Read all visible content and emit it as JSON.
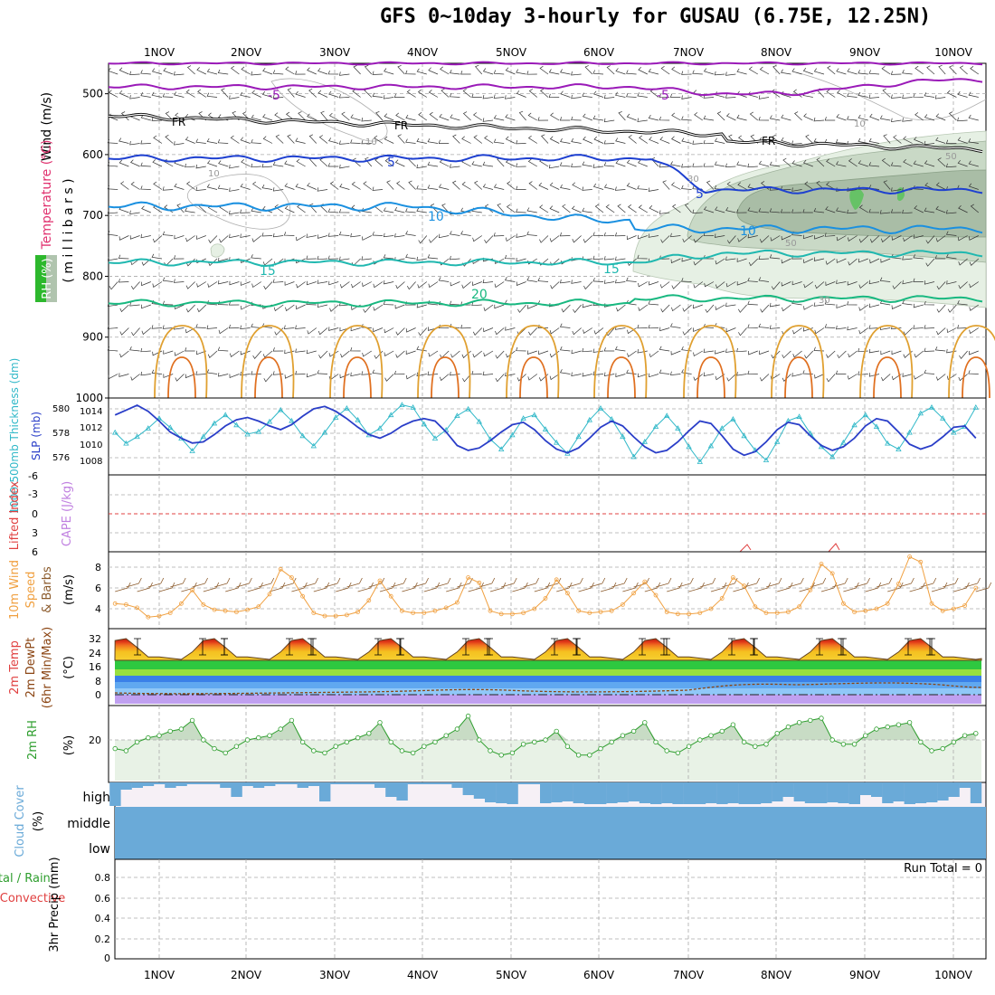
{
  "title": "GFS 0~10day 3-hourly for GUSAU (6.75E, 12.25N)",
  "days": [
    "1NOV",
    "2NOV",
    "3NOV",
    "4NOV",
    "5NOV",
    "6NOV",
    "7NOV",
    "8NOV",
    "9NOV",
    "10NOV"
  ],
  "panels": {
    "upper": {
      "ylabel_parts": [
        {
          "text": "Wind (m/s)",
          "color": "#000000"
        },
        {
          "text": "Temperature (°C)",
          "color": "#e0306e"
        },
        {
          "text": "RH (%)",
          "color": "#ffffff"
        }
      ],
      "ylabel_millibars": "( m i l l i b a r s )",
      "pressure_ticks": [
        "500",
        "600",
        "700",
        "800",
        "900",
        "1000"
      ],
      "temp_labels": [
        "-5",
        "-5",
        "FR",
        "FR",
        "FR",
        "5",
        "5",
        "10",
        "10",
        "15",
        "15",
        "20"
      ],
      "rh_labels": [
        "10",
        "10",
        "10",
        "30",
        "50",
        "50",
        "30"
      ]
    },
    "slp": {
      "left_label": "1000-500mb Thickness (dm)",
      "right_label": "SLP (mb)",
      "thickness_ticks": [
        "580",
        "578",
        "576"
      ],
      "slp_ticks": [
        "1014",
        "1012",
        "1010",
        "1008"
      ]
    },
    "cape": {
      "left_label": "Lifted Index",
      "right_label": "CAPE (J/kg)",
      "ticks": [
        "-6",
        "-3",
        "0",
        "3",
        "6"
      ]
    },
    "wind10": {
      "label_lines": [
        "10m Wind",
        "Speed",
        "& Barbs"
      ],
      "unit": "(m/s)",
      "ticks": [
        "8",
        "6",
        "4"
      ]
    },
    "temp2m": {
      "label_lines": [
        "2m Temp",
        "2m DewPt",
        "(6hr Min/Max)"
      ],
      "unit": "(°C)",
      "ticks": [
        "32",
        "24",
        "16",
        "8",
        "0"
      ]
    },
    "rh2m": {
      "label": "2m RH",
      "unit": "(%)",
      "ticks": [
        "20"
      ]
    },
    "cloud": {
      "label": "Cloud Cover",
      "unit": "(%)",
      "levels": [
        "high",
        "middle",
        "low"
      ]
    },
    "precip": {
      "label_total": "Total / Rain",
      "label_conv": "Convective",
      "label_main": "3hr Precip (mm)",
      "ticks": [
        "0.8",
        "0.6",
        "0.4",
        "0.2",
        "0"
      ],
      "run_total": "Run Total = 0"
    }
  },
  "colors": {
    "temp_neg": "#9a1ab8",
    "temp_fr": "#000000",
    "temp_5": "#1e40d0",
    "temp_10": "#1a90e0",
    "temp_15": "#20b8b0",
    "temp_20": "#18b880",
    "warm": "#e0a030",
    "hot": "#e07020",
    "thickness": "#2a3ec8",
    "slp": "#30b8c8",
    "wind_speed": "#f0a040",
    "barb": "#8b5a2b",
    "rh": "#2e9e2e",
    "cloud": "#6aaad8",
    "tempfill_top": "#c03010",
    "dewpoint": "#8b4513"
  },
  "chart_data": [
    {
      "type": "line",
      "title": "1000-500mb Thickness (dm)",
      "x": [
        "31OCT12",
        "31OCT15",
        "31OCT18",
        "31OCT21",
        "1NOV00",
        "1NOV03",
        "1NOV06",
        "1NOV09",
        "1NOV12",
        "1NOV15",
        "1NOV18",
        "1NOV21",
        "2NOV00",
        "2NOV03",
        "2NOV06",
        "2NOV09",
        "2NOV12",
        "2NOV15",
        "2NOV18",
        "2NOV21",
        "3NOV00",
        "3NOV03",
        "3NOV06",
        "3NOV09",
        "3NOV12",
        "3NOV15",
        "3NOV18",
        "3NOV21",
        "4NOV00",
        "4NOV03",
        "4NOV06",
        "4NOV09",
        "4NOV12",
        "4NOV15",
        "4NOV18",
        "4NOV21",
        "5NOV00",
        "5NOV03",
        "5NOV06",
        "5NOV09",
        "5NOV12",
        "5NOV15",
        "5NOV18",
        "5NOV21",
        "6NOV00",
        "6NOV03",
        "6NOV06",
        "6NOV09",
        "6NOV12",
        "6NOV15",
        "6NOV18",
        "6NOV21",
        "7NOV00",
        "7NOV03",
        "7NOV06",
        "7NOV09",
        "7NOV12",
        "7NOV15",
        "7NOV18",
        "7NOV21",
        "8NOV00",
        "8NOV03",
        "8NOV06",
        "8NOV09",
        "8NOV12",
        "8NOV15",
        "8NOV18",
        "8NOV21",
        "9NOV00",
        "9NOV03",
        "9NOV06",
        "9NOV09",
        "9NOV12",
        "9NOV15",
        "9NOV18",
        "9NOV21",
        "10NOV00",
        "10NOV03",
        "10NOV06"
      ],
      "series": [
        {
          "name": "1000-500mb Thickness",
          "unit": "dm",
          "values": [
            579.5,
            579.9,
            580.3,
            579.8,
            579.0,
            578.1,
            577.6,
            577.2,
            577.3,
            577.9,
            578.6,
            579.1,
            579.3,
            579.0,
            578.6,
            578.3,
            578.7,
            579.4,
            580.0,
            580.2,
            579.8,
            579.2,
            578.5,
            577.9,
            577.6,
            578.0,
            578.6,
            579.0,
            579.2,
            579.0,
            578.1,
            577.0,
            576.6,
            576.8,
            577.4,
            578.1,
            578.7,
            578.9,
            578.3,
            577.4,
            576.7,
            576.4,
            576.8,
            577.6,
            578.5,
            579.0,
            578.6,
            577.7,
            576.9,
            576.4,
            576.6,
            577.3,
            578.2,
            579.0,
            578.8,
            577.8,
            576.7,
            576.2,
            576.5,
            577.3,
            578.3,
            578.9,
            578.7,
            577.8,
            577.0,
            576.6,
            576.9,
            577.6,
            578.6,
            579.2,
            579.0,
            578.1,
            577.1,
            576.7,
            577.0,
            577.7,
            578.5,
            578.6,
            577.6
          ]
        },
        {
          "name": "SLP",
          "unit": "mb",
          "values": [
            1011.5,
            1010.2,
            1011.0,
            1012.0,
            1013.2,
            1012.1,
            1010.8,
            1009.3,
            1011.0,
            1012.6,
            1013.6,
            1012.4,
            1011.3,
            1011.6,
            1012.8,
            1014.2,
            1012.9,
            1011.1,
            1009.9,
            1011.5,
            1013.3,
            1014.4,
            1013.0,
            1011.2,
            1012.0,
            1013.6,
            1014.8,
            1014.5,
            1012.5,
            1010.8,
            1011.8,
            1013.5,
            1014.3,
            1012.8,
            1010.7,
            1009.5,
            1011.2,
            1013.2,
            1013.6,
            1011.9,
            1010.3,
            1009.0,
            1011.0,
            1013.0,
            1014.4,
            1013.1,
            1011.0,
            1008.6,
            1010.4,
            1012.2,
            1013.5,
            1012.0,
            1009.8,
            1008.0,
            1009.9,
            1012.0,
            1013.1,
            1011.1,
            1009.4,
            1008.2,
            1010.4,
            1012.9,
            1013.4,
            1011.4,
            1009.8,
            1008.6,
            1010.3,
            1012.4,
            1013.6,
            1012.2,
            1010.2,
            1009.5,
            1011.5,
            1013.8,
            1014.5,
            1013.2,
            1011.5,
            1012.2,
            1014.5
          ]
        }
      ]
    },
    {
      "type": "line",
      "title": "10m Wind Speed",
      "x": [
        "31OCT12",
        "31OCT15",
        "31OCT18",
        "31OCT21",
        "1NOV00",
        "1NOV03",
        "1NOV06",
        "1NOV09",
        "1NOV12",
        "1NOV15",
        "1NOV18",
        "1NOV21",
        "2NOV00",
        "2NOV03",
        "2NOV06",
        "2NOV09",
        "2NOV12",
        "2NOV15",
        "2NOV18",
        "2NOV21",
        "3NOV00",
        "3NOV03",
        "3NOV06",
        "3NOV09",
        "3NOV12",
        "3NOV15",
        "3NOV18",
        "3NOV21",
        "4NOV00",
        "4NOV03",
        "4NOV06",
        "4NOV09",
        "4NOV12",
        "4NOV15",
        "4NOV18",
        "4NOV21",
        "5NOV00",
        "5NOV03",
        "5NOV06",
        "5NOV09",
        "5NOV12",
        "5NOV15",
        "5NOV18",
        "5NOV21",
        "6NOV00",
        "6NOV03",
        "6NOV06",
        "6NOV09",
        "6NOV12",
        "6NOV15",
        "6NOV18",
        "6NOV21",
        "7NOV00",
        "7NOV03",
        "7NOV06",
        "7NOV09",
        "7NOV12",
        "7NOV15",
        "7NOV18",
        "7NOV21",
        "8NOV00",
        "8NOV03",
        "8NOV06",
        "8NOV09",
        "8NOV12",
        "8NOV15",
        "8NOV18",
        "8NOV21",
        "9NOV00",
        "9NOV03",
        "9NOV06",
        "9NOV09",
        "9NOV12",
        "9NOV15",
        "9NOV18",
        "9NOV21",
        "10NOV00",
        "10NOV03",
        "10NOV06"
      ],
      "series": [
        {
          "name": "10m Wind Speed",
          "unit": "m/s",
          "values": [
            4.5,
            4.4,
            4.1,
            3.2,
            3.3,
            3.6,
            4.5,
            5.8,
            4.4,
            3.9,
            3.8,
            3.7,
            3.9,
            4.2,
            5.4,
            7.8,
            7.0,
            5.2,
            3.6,
            3.3,
            3.3,
            3.4,
            3.7,
            4.8,
            6.7,
            5.2,
            3.8,
            3.6,
            3.6,
            3.8,
            4.1,
            4.6,
            7.0,
            6.5,
            3.8,
            3.5,
            3.5,
            3.6,
            4.0,
            5.0,
            6.8,
            5.5,
            3.8,
            3.6,
            3.7,
            3.8,
            4.4,
            5.5,
            6.6,
            5.3,
            3.7,
            3.5,
            3.5,
            3.6,
            4.0,
            5.0,
            7.0,
            6.2,
            4.2,
            3.6,
            3.6,
            3.7,
            4.2,
            5.8,
            8.3,
            7.4,
            4.5,
            3.7,
            3.8,
            4.0,
            4.5,
            6.4,
            9.0,
            8.5,
            4.5,
            3.8,
            4.0,
            4.3,
            6.0
          ]
        }
      ]
    },
    {
      "type": "line",
      "title": "2m RH",
      "x": [
        "31OCT12",
        "31OCT15",
        "31OCT18",
        "31OCT21",
        "1NOV00",
        "1NOV03",
        "1NOV06",
        "1NOV09",
        "1NOV12",
        "1NOV15",
        "1NOV18",
        "1NOV21",
        "2NOV00",
        "2NOV03",
        "2NOV06",
        "2NOV09",
        "2NOV12",
        "2NOV15",
        "2NOV18",
        "2NOV21",
        "3NOV00",
        "3NOV03",
        "3NOV06",
        "3NOV09",
        "3NOV12",
        "3NOV15",
        "3NOV18",
        "3NOV21",
        "4NOV00",
        "4NOV03",
        "4NOV06",
        "4NOV09",
        "4NOV12",
        "4NOV15",
        "4NOV18",
        "4NOV21",
        "5NOV00",
        "5NOV03",
        "5NOV06",
        "5NOV09",
        "5NOV12",
        "5NOV15",
        "5NOV18",
        "5NOV21",
        "6NOV00",
        "6NOV03",
        "6NOV06",
        "6NOV09",
        "6NOV12",
        "6NOV15",
        "6NOV18",
        "6NOV21",
        "7NOV00",
        "7NOV03",
        "7NOV06",
        "7NOV09",
        "7NOV12",
        "7NOV15",
        "7NOV18",
        "7NOV21",
        "8NOV00",
        "8NOV03",
        "8NOV06",
        "8NOV09",
        "8NOV12",
        "8NOV15",
        "8NOV18",
        "8NOV21",
        "9NOV00",
        "9NOV03",
        "9NOV06",
        "9NOV09",
        "9NOV12",
        "9NOV15",
        "9NOV18",
        "9NOV21",
        "10NOV00",
        "10NOV03",
        "10NOV06"
      ],
      "series": [
        {
          "name": "2m RH",
          "unit": "%",
          "values": [
            16,
            15,
            19,
            21,
            22,
            24,
            25,
            29,
            20,
            16,
            14,
            17,
            20,
            21,
            22,
            25,
            29,
            19,
            15,
            14,
            17,
            19,
            21,
            23,
            28,
            19,
            15,
            14,
            17,
            19,
            22,
            25,
            31,
            20,
            15,
            13,
            14,
            18,
            19,
            20,
            24,
            17,
            13,
            13,
            16,
            19,
            22,
            24,
            28,
            19,
            15,
            14,
            17,
            20,
            22,
            24,
            27,
            19,
            17,
            18,
            23,
            26,
            28,
            29,
            30,
            20,
            18,
            18,
            22,
            25,
            26,
            27,
            28,
            19,
            15,
            16,
            19,
            22,
            23
          ]
        }
      ]
    }
  ]
}
